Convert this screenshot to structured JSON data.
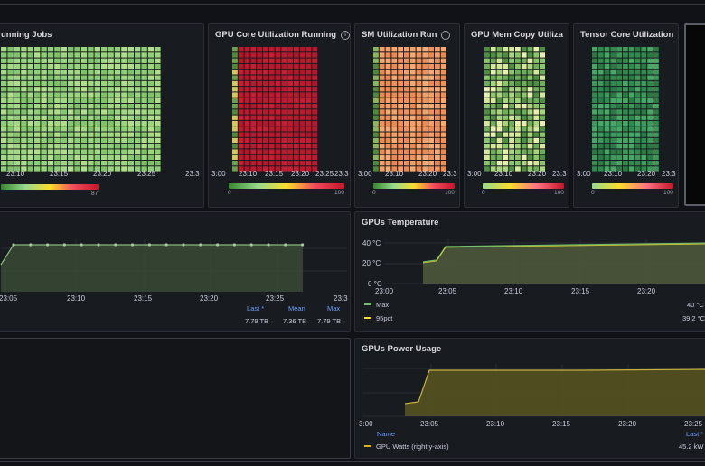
{
  "panels": {
    "running_jobs": {
      "title": "unning Jobs",
      "xticks": [
        "23:10",
        "23:15",
        "23:20",
        "23:25",
        "23:3"
      ],
      "scale_max": "87"
    },
    "gpu_core": {
      "title": "GPU Core Utilization Running",
      "xticks": [
        "3:00",
        "23:10",
        "23:15",
        "23:20",
        "23:25",
        "23:3"
      ],
      "scale_min": "0",
      "scale_max": "100"
    },
    "sm_util": {
      "title": "SM Utilization Run",
      "xticks": [
        "3:00",
        "23:10",
        "23:20",
        "23:3"
      ],
      "scale_min": "0",
      "scale_max": "100"
    },
    "mem_copy": {
      "title": "GPU Mem Copy Utiliza",
      "xticks": [
        "3:00",
        "23:10",
        "23:20",
        "23:3"
      ],
      "scale_min": "0",
      "scale_max": "100"
    },
    "tensor_core": {
      "title": "Tensor Core Utilization",
      "xticks": [
        "3:00",
        "23:10",
        "23:20",
        "23:3"
      ],
      "scale_min": "0",
      "scale_max": "100"
    },
    "storage": {
      "xticks": [
        "23:05",
        "23:10",
        "23:15",
        "23:20",
        "23:25",
        "23:3"
      ],
      "legend_headers": [
        "Last *",
        "Mean",
        "Max"
      ],
      "legend_values": [
        "7.79 TB",
        "7.36 TB",
        "7.79 TB"
      ]
    },
    "temperature": {
      "title": "GPUs Temperature",
      "yticks": [
        "40 °C",
        "20 °C",
        "0 °C"
      ],
      "xticks": [
        "23:00",
        "23:05",
        "23:10",
        "23:15",
        "23:20"
      ],
      "legend": [
        {
          "name": "Max",
          "value": "40 °C",
          "color": "#73bf69"
        },
        {
          "name": "95pct",
          "value": "39.2 °C",
          "color": "#fade2a"
        }
      ]
    },
    "power": {
      "title": "GPUs Power Usage",
      "xticks": [
        "3:00",
        "23:05",
        "23:10",
        "23:15",
        "23:20",
        "23:25"
      ],
      "legend_headers": [
        "Name",
        "Last *"
      ],
      "legend": [
        {
          "name": "GPU Watts (right y-axis)",
          "value": "45.2 kW",
          "color": "#e0b400"
        }
      ]
    }
  },
  "colors": {
    "background": "#111217",
    "panel": "#181b1f",
    "green": "#73bf69",
    "red": "#c4162a",
    "orange": "#f28a4a",
    "olive": "#8a8a2e",
    "link": "#6e9fff"
  }
}
